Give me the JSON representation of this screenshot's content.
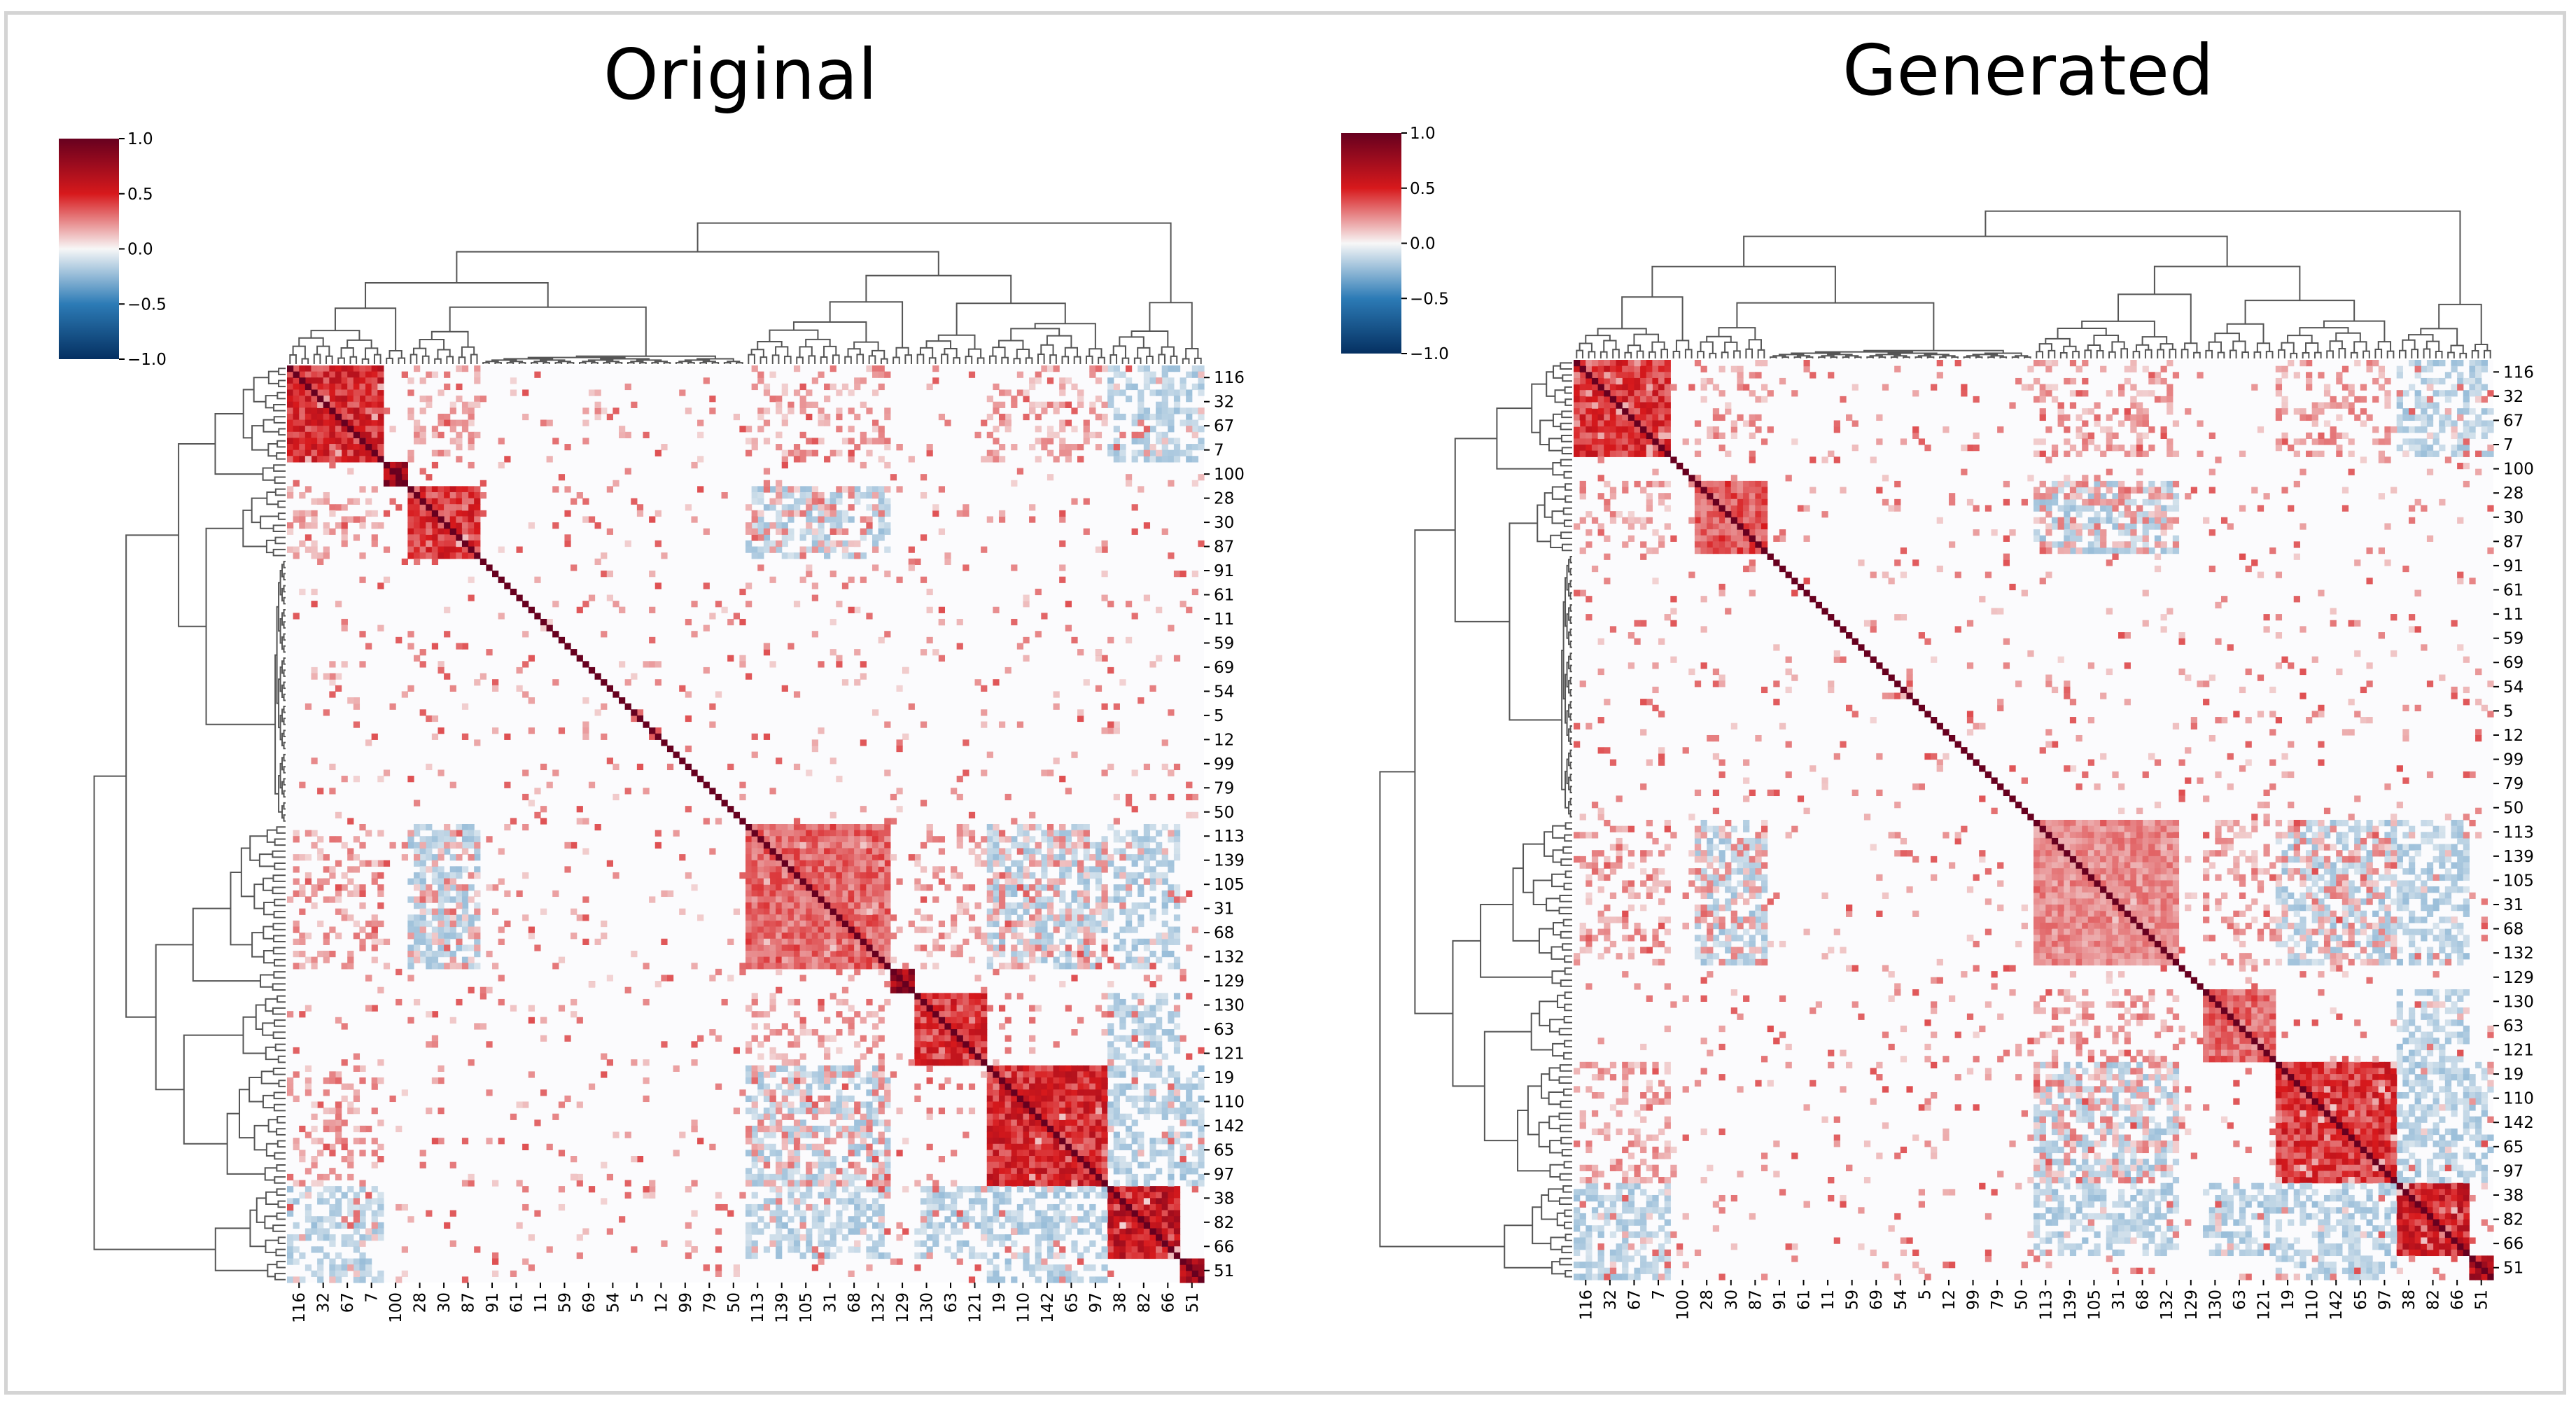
{
  "titles": {
    "left": "Original",
    "right": "Generated"
  },
  "colorbar": {
    "ticks": [
      "1.0",
      "0.5",
      "0.0",
      "−0.5",
      "−1.0"
    ],
    "colormap": [
      "#67001f",
      "#d7191c",
      "#f7f7f7",
      "#2c7bb6",
      "#053061"
    ]
  },
  "chart_data": [
    {
      "type": "heatmap",
      "title": "Original",
      "value_range": [
        -1.0,
        1.0
      ],
      "colorbar_ticks": [
        1.0,
        0.5,
        0.0,
        -0.5,
        -1.0
      ],
      "row_tick_labels": [
        "116",
        "32",
        "67",
        "7",
        "100",
        "28",
        "30",
        "87",
        "91",
        "61",
        "11",
        "59",
        "69",
        "54",
        "5",
        "12",
        "99",
        "79",
        "50",
        "113",
        "139",
        "105",
        "31",
        "68",
        "132",
        "129",
        "130",
        "63",
        "121",
        "19",
        "110",
        "142",
        "65",
        "97",
        "38",
        "82",
        "66",
        "51"
      ],
      "col_tick_labels": [
        "116",
        "32",
        "67",
        "7",
        "100",
        "28",
        "30",
        "87",
        "91",
        "61",
        "11",
        "59",
        "69",
        "54",
        "5",
        "12",
        "99",
        "79",
        "50",
        "113",
        "139",
        "105",
        "31",
        "68",
        "132",
        "129",
        "130",
        "63",
        "121",
        "19",
        "110",
        "142",
        "65",
        "97",
        "38",
        "82",
        "66",
        "51"
      ],
      "block_labels": [
        [
          "116",
          "32",
          "67",
          "7"
        ],
        [
          "100"
        ],
        [
          "28",
          "30",
          "87"
        ],
        [
          "91",
          "61",
          "11",
          "59",
          "69",
          "54",
          "5",
          "12",
          "99",
          "79",
          "50"
        ],
        [
          "113",
          "139",
          "105",
          "31",
          "68",
          "132"
        ],
        [
          "129"
        ],
        [
          "130",
          "63",
          "121"
        ],
        [
          "19",
          "110",
          "142",
          "65",
          "97"
        ],
        [
          "38",
          "82",
          "66"
        ],
        [
          "51"
        ]
      ],
      "block_correlation": [
        0.65,
        1.0,
        0.6,
        0.05,
        0.45,
        1.0,
        0.6,
        0.65,
        0.75,
        0.85
      ],
      "dendrograms": "row and column hierarchical clustering"
    },
    {
      "type": "heatmap",
      "title": "Generated",
      "value_range": [
        -1.0,
        1.0
      ],
      "colorbar_ticks": [
        1.0,
        0.5,
        0.0,
        -0.5,
        -1.0
      ],
      "row_tick_labels": [
        "116",
        "32",
        "67",
        "7",
        "100",
        "28",
        "30",
        "87",
        "91",
        "61",
        "11",
        "59",
        "69",
        "54",
        "5",
        "12",
        "99",
        "79",
        "50",
        "113",
        "139",
        "105",
        "31",
        "68",
        "132",
        "129",
        "130",
        "63",
        "121",
        "19",
        "110",
        "142",
        "65",
        "97",
        "38",
        "82",
        "66",
        "51"
      ],
      "col_tick_labels": [
        "116",
        "32",
        "67",
        "7",
        "100",
        "28",
        "30",
        "87",
        "91",
        "61",
        "11",
        "59",
        "69",
        "54",
        "5",
        "12",
        "99",
        "79",
        "50",
        "113",
        "139",
        "105",
        "31",
        "68",
        "132",
        "129",
        "130",
        "63",
        "121",
        "19",
        "110",
        "142",
        "65",
        "97",
        "38",
        "82",
        "66",
        "51"
      ],
      "block_labels": [
        [
          "116",
          "32",
          "67",
          "7"
        ],
        [
          "100"
        ],
        [
          "28",
          "30",
          "87"
        ],
        [
          "91",
          "61",
          "11",
          "59",
          "69",
          "54",
          "5",
          "12",
          "99",
          "79",
          "50"
        ],
        [
          "113",
          "139",
          "105",
          "31",
          "68",
          "132"
        ],
        [
          "129"
        ],
        [
          "130",
          "63",
          "121"
        ],
        [
          "19",
          "110",
          "142",
          "65",
          "97"
        ],
        [
          "38",
          "82",
          "66"
        ],
        [
          "51"
        ]
      ],
      "block_correlation": [
        0.6,
        0.1,
        0.5,
        0.05,
        0.35,
        0.1,
        0.45,
        0.6,
        0.7,
        0.8
      ],
      "dendrograms": "row and column hierarchical clustering"
    }
  ]
}
